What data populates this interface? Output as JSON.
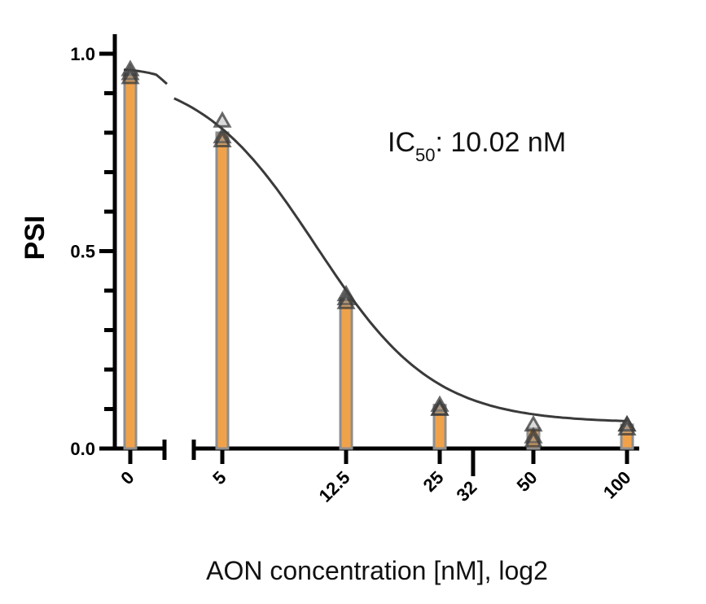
{
  "chart_data": {
    "type": "bar",
    "xlabel": "AON concentration [nM], log2",
    "ylabel": "PSI",
    "annotation": {
      "prefix": "IC",
      "subscript": "50",
      "suffix": ": 10.02 nM"
    },
    "x_scale": "log2",
    "ylim": [
      0,
      1.0
    ],
    "yticks": [
      {
        "value": 0.0,
        "label": "0.0"
      },
      {
        "value": 0.5,
        "label": "0.5"
      },
      {
        "value": 1.0,
        "label": "1.0"
      }
    ],
    "xticks": [
      "0",
      "5",
      "12.5",
      "25",
      "32",
      "50",
      "100"
    ],
    "bars": [
      {
        "x": 0,
        "label": "0",
        "value": 0.95
      },
      {
        "x": 5,
        "label": "5",
        "value": 0.8
      },
      {
        "x": 12.5,
        "label": "12.5",
        "value": 0.38
      },
      {
        "x": 25,
        "label": "25",
        "value": 0.11
      },
      {
        "x": 50,
        "label": "50",
        "value": 0.05
      },
      {
        "x": 100,
        "label": "100",
        "value": 0.06
      }
    ],
    "points": [
      {
        "x": 0,
        "y": 0.96
      },
      {
        "x": 0,
        "y": 0.95
      },
      {
        "x": 0,
        "y": 0.94
      },
      {
        "x": 5,
        "y": 0.83
      },
      {
        "x": 5,
        "y": 0.79
      },
      {
        "x": 5,
        "y": 0.78
      },
      {
        "x": 12.5,
        "y": 0.39
      },
      {
        "x": 12.5,
        "y": 0.38
      },
      {
        "x": 12.5,
        "y": 0.37
      },
      {
        "x": 25,
        "y": 0.11
      },
      {
        "x": 25,
        "y": 0.1
      },
      {
        "x": 25,
        "y": 0.1
      },
      {
        "x": 50,
        "y": 0.06
      },
      {
        "x": 50,
        "y": 0.03
      },
      {
        "x": 50,
        "y": 0.02
      },
      {
        "x": 100,
        "y": 0.06
      },
      {
        "x": 100,
        "y": 0.06
      },
      {
        "x": 100,
        "y": 0.05
      }
    ],
    "fit": {
      "top": 0.96,
      "bottom": 0.065,
      "ic50": 10.02,
      "hill": 2.3
    },
    "colors": {
      "bar_fill": "#F0A24A",
      "bar_edge": "#8E8E8E",
      "curve": "#3a3a3a",
      "axis": "#000000"
    }
  }
}
